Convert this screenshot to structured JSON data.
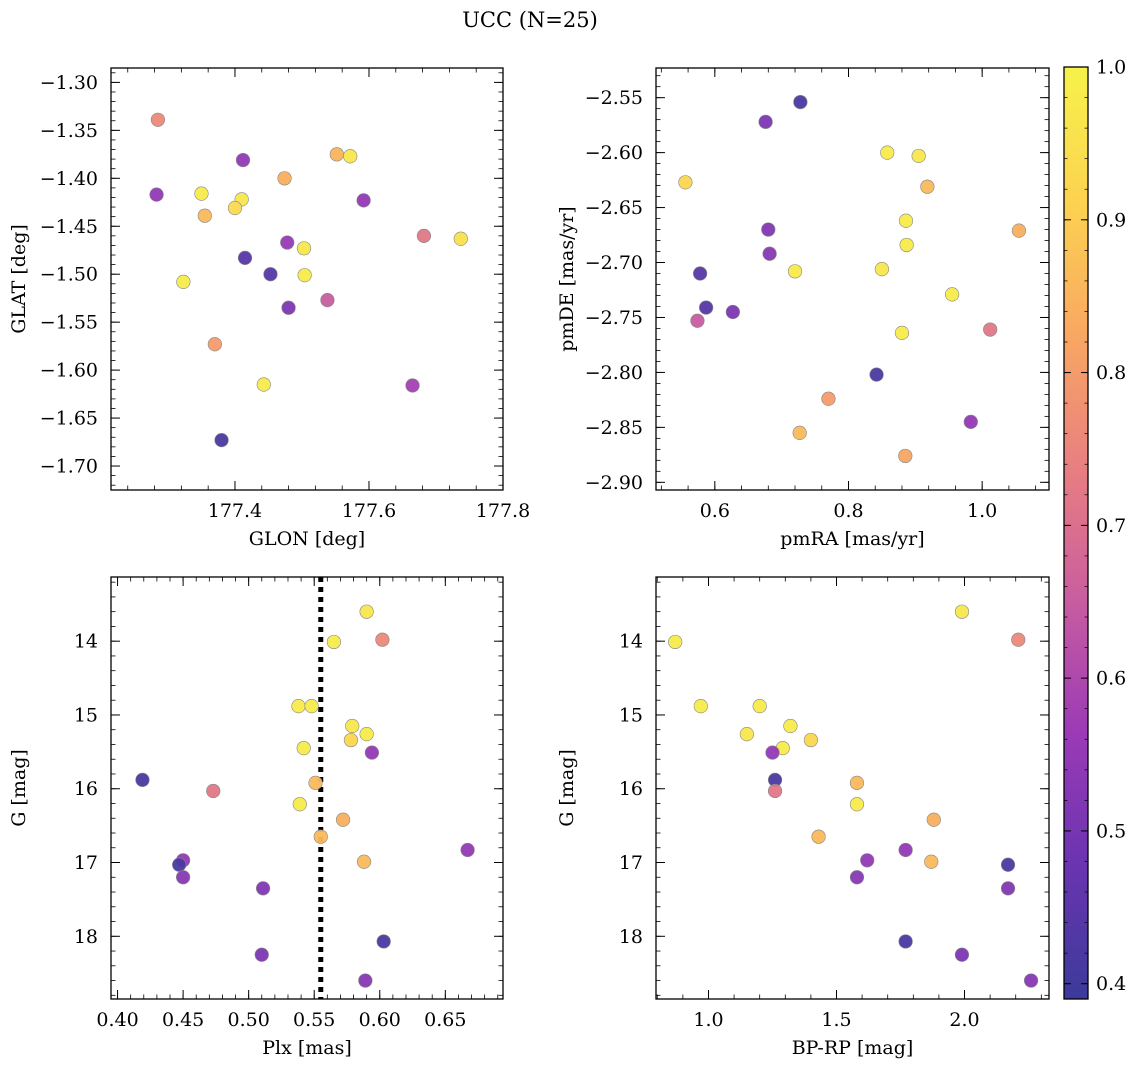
{
  "title": "UCC (N=25)",
  "colorbar": {
    "range": [
      0.39,
      1.0
    ],
    "ticks": [
      0.4,
      0.5,
      0.6,
      0.7,
      0.8,
      0.9,
      1.0
    ],
    "tick_labels": [
      "0.4",
      "0.5",
      "0.6",
      "0.7",
      "0.8",
      "0.9",
      "1.0"
    ],
    "colormap": "plasma (truncated)",
    "stops": [
      "#3b3b9a",
      "#6a34b0",
      "#9b3ab7",
      "#c95da0",
      "#e87f80",
      "#f9a862",
      "#fcd350",
      "#f6f24a"
    ]
  },
  "marker": {
    "edge_color": "#888888",
    "alpha": 0.95
  },
  "chart_data": [
    {
      "type": "scatter",
      "xlabel": "GLON [deg]",
      "ylabel": "GLAT [deg]",
      "xlim": [
        177.215,
        177.8
      ],
      "ylim": [
        -1.725,
        -1.285
      ],
      "xticks": [
        177.4,
        177.6,
        177.8
      ],
      "xtick_labels": [
        "177.4",
        "177.6",
        "177.8"
      ],
      "yticks": [
        -1.3,
        -1.35,
        -1.4,
        -1.45,
        -1.5,
        -1.55,
        -1.6,
        -1.65,
        -1.7
      ],
      "ytick_labels": [
        "−1.30",
        "−1.35",
        "−1.40",
        "−1.45",
        "−1.50",
        "−1.55",
        "−1.60",
        "−1.65",
        "−1.70"
      ],
      "points": [
        {
          "x": 177.285,
          "y": -1.339,
          "c": 0.76
        },
        {
          "x": 177.283,
          "y": -1.417,
          "c": 0.55
        },
        {
          "x": 177.35,
          "y": -1.416,
          "c": 0.98
        },
        {
          "x": 177.355,
          "y": -1.439,
          "c": 0.86
        },
        {
          "x": 177.412,
          "y": -1.381,
          "c": 0.55
        },
        {
          "x": 177.41,
          "y": -1.422,
          "c": 0.97
        },
        {
          "x": 177.4,
          "y": -1.431,
          "c": 0.93
        },
        {
          "x": 177.474,
          "y": -1.4,
          "c": 0.84
        },
        {
          "x": 177.552,
          "y": -1.375,
          "c": 0.85
        },
        {
          "x": 177.572,
          "y": -1.377,
          "c": 0.97
        },
        {
          "x": 177.592,
          "y": -1.423,
          "c": 0.55
        },
        {
          "x": 177.415,
          "y": -1.483,
          "c": 0.44
        },
        {
          "x": 177.453,
          "y": -1.5,
          "c": 0.44
        },
        {
          "x": 177.478,
          "y": -1.467,
          "c": 0.56
        },
        {
          "x": 177.503,
          "y": -1.473,
          "c": 0.97
        },
        {
          "x": 177.504,
          "y": -1.501,
          "c": 0.98
        },
        {
          "x": 177.323,
          "y": -1.508,
          "c": 0.98
        },
        {
          "x": 177.48,
          "y": -1.535,
          "c": 0.51
        },
        {
          "x": 177.538,
          "y": -1.527,
          "c": 0.65
        },
        {
          "x": 177.682,
          "y": -1.46,
          "c": 0.72
        },
        {
          "x": 177.737,
          "y": -1.463,
          "c": 0.95
        },
        {
          "x": 177.37,
          "y": -1.573,
          "c": 0.8
        },
        {
          "x": 177.443,
          "y": -1.615,
          "c": 0.98
        },
        {
          "x": 177.665,
          "y": -1.616,
          "c": 0.58
        },
        {
          "x": 177.38,
          "y": -1.673,
          "c": 0.42
        }
      ]
    },
    {
      "type": "scatter",
      "xlabel": "pmRA [mas/yr]",
      "ylabel": "pmDE [mas/yr]",
      "xlim": [
        0.512,
        1.1
      ],
      "ylim": [
        -2.907,
        -2.523
      ],
      "xticks": [
        0.6,
        0.8,
        1.0
      ],
      "xtick_labels": [
        "0.6",
        "0.8",
        "1.0"
      ],
      "yticks": [
        -2.55,
        -2.6,
        -2.65,
        -2.7,
        -2.75,
        -2.8,
        -2.85,
        -2.9
      ],
      "ytick_labels": [
        "−2.55",
        "−2.60",
        "−2.65",
        "−2.70",
        "−2.75",
        "−2.80",
        "−2.85",
        "−2.90"
      ],
      "points": [
        {
          "x": 0.728,
          "y": -2.554,
          "c": 0.42
        },
        {
          "x": 0.676,
          "y": -2.572,
          "c": 0.51
        },
        {
          "x": 0.858,
          "y": -2.6,
          "c": 0.98
        },
        {
          "x": 0.905,
          "y": -2.603,
          "c": 0.97
        },
        {
          "x": 0.556,
          "y": -2.627,
          "c": 0.92
        },
        {
          "x": 0.918,
          "y": -2.631,
          "c": 0.86
        },
        {
          "x": 0.886,
          "y": -2.662,
          "c": 0.98
        },
        {
          "x": 0.68,
          "y": -2.67,
          "c": 0.52
        },
        {
          "x": 1.055,
          "y": -2.671,
          "c": 0.84
        },
        {
          "x": 0.887,
          "y": -2.684,
          "c": 0.98
        },
        {
          "x": 0.682,
          "y": -2.692,
          "c": 0.53
        },
        {
          "x": 0.578,
          "y": -2.71,
          "c": 0.44
        },
        {
          "x": 0.72,
          "y": -2.708,
          "c": 0.98
        },
        {
          "x": 0.85,
          "y": -2.706,
          "c": 0.97
        },
        {
          "x": 0.587,
          "y": -2.741,
          "c": 0.44
        },
        {
          "x": 0.627,
          "y": -2.745,
          "c": 0.51
        },
        {
          "x": 0.574,
          "y": -2.753,
          "c": 0.65
        },
        {
          "x": 0.955,
          "y": -2.729,
          "c": 0.98
        },
        {
          "x": 0.88,
          "y": -2.764,
          "c": 0.98
        },
        {
          "x": 1.012,
          "y": -2.761,
          "c": 0.72
        },
        {
          "x": 0.842,
          "y": -2.802,
          "c": 0.42
        },
        {
          "x": 0.77,
          "y": -2.824,
          "c": 0.8
        },
        {
          "x": 0.727,
          "y": -2.855,
          "c": 0.86
        },
        {
          "x": 0.983,
          "y": -2.845,
          "c": 0.55
        },
        {
          "x": 0.885,
          "y": -2.876,
          "c": 0.82
        }
      ]
    },
    {
      "type": "scatter",
      "xlabel": "Plx [mas]",
      "ylabel": "G [mag]",
      "invert_y": true,
      "xlim": [
        0.395,
        0.694
      ],
      "ylim": [
        18.85,
        13.13
      ],
      "xticks": [
        0.4,
        0.45,
        0.5,
        0.55,
        0.6,
        0.65
      ],
      "xtick_labels": [
        "0.40",
        "0.45",
        "0.50",
        "0.55",
        "0.60",
        "0.65"
      ],
      "yticks": [
        14,
        15,
        16,
        17,
        18
      ],
      "ytick_labels": [
        "14",
        "15",
        "16",
        "17",
        "18"
      ],
      "vline": {
        "x": 0.555,
        "style": "dotted",
        "color": "#000000"
      },
      "points": [
        {
          "x": 0.59,
          "y": 13.6,
          "c": 0.97
        },
        {
          "x": 0.565,
          "y": 14.01,
          "c": 0.98
        },
        {
          "x": 0.602,
          "y": 13.98,
          "c": 0.76
        },
        {
          "x": 0.538,
          "y": 14.88,
          "c": 0.98
        },
        {
          "x": 0.548,
          "y": 14.88,
          "c": 0.98
        },
        {
          "x": 0.579,
          "y": 15.15,
          "c": 0.97
        },
        {
          "x": 0.59,
          "y": 15.26,
          "c": 0.98
        },
        {
          "x": 0.578,
          "y": 15.34,
          "c": 0.92
        },
        {
          "x": 0.542,
          "y": 15.45,
          "c": 0.98
        },
        {
          "x": 0.594,
          "y": 15.51,
          "c": 0.55
        },
        {
          "x": 0.419,
          "y": 15.88,
          "c": 0.42
        },
        {
          "x": 0.473,
          "y": 16.03,
          "c": 0.72
        },
        {
          "x": 0.551,
          "y": 15.92,
          "c": 0.86
        },
        {
          "x": 0.539,
          "y": 16.21,
          "c": 0.98
        },
        {
          "x": 0.572,
          "y": 16.42,
          "c": 0.84
        },
        {
          "x": 0.555,
          "y": 16.65,
          "c": 0.86
        },
        {
          "x": 0.45,
          "y": 16.97,
          "c": 0.55
        },
        {
          "x": 0.447,
          "y": 17.03,
          "c": 0.42
        },
        {
          "x": 0.45,
          "y": 17.2,
          "c": 0.53
        },
        {
          "x": 0.588,
          "y": 16.99,
          "c": 0.86
        },
        {
          "x": 0.667,
          "y": 16.83,
          "c": 0.55
        },
        {
          "x": 0.511,
          "y": 17.35,
          "c": 0.52
        },
        {
          "x": 0.603,
          "y": 18.07,
          "c": 0.42
        },
        {
          "x": 0.51,
          "y": 18.25,
          "c": 0.51
        },
        {
          "x": 0.589,
          "y": 18.6,
          "c": 0.53
        }
      ]
    },
    {
      "type": "scatter",
      "xlabel": "BP-RP [mag]",
      "ylabel": "G [mag]",
      "invert_y": true,
      "xlim": [
        0.795,
        2.33
      ],
      "ylim": [
        18.85,
        13.13
      ],
      "xticks": [
        1.0,
        1.5,
        2.0
      ],
      "xtick_labels": [
        "1.0",
        "1.5",
        "2.0"
      ],
      "yticks": [
        14,
        15,
        16,
        17,
        18
      ],
      "ytick_labels": [
        "14",
        "15",
        "16",
        "17",
        "18"
      ],
      "points": [
        {
          "x": 1.99,
          "y": 13.6,
          "c": 0.97
        },
        {
          "x": 0.87,
          "y": 14.01,
          "c": 0.98
        },
        {
          "x": 2.21,
          "y": 13.98,
          "c": 0.76
        },
        {
          "x": 0.97,
          "y": 14.88,
          "c": 0.98
        },
        {
          "x": 1.2,
          "y": 14.88,
          "c": 0.98
        },
        {
          "x": 1.15,
          "y": 15.26,
          "c": 0.97
        },
        {
          "x": 1.32,
          "y": 15.15,
          "c": 0.98
        },
        {
          "x": 1.4,
          "y": 15.34,
          "c": 0.92
        },
        {
          "x": 1.29,
          "y": 15.45,
          "c": 0.98
        },
        {
          "x": 1.25,
          "y": 15.51,
          "c": 0.55
        },
        {
          "x": 1.26,
          "y": 15.88,
          "c": 0.42
        },
        {
          "x": 1.26,
          "y": 16.03,
          "c": 0.72
        },
        {
          "x": 1.58,
          "y": 15.92,
          "c": 0.86
        },
        {
          "x": 1.58,
          "y": 16.21,
          "c": 0.98
        },
        {
          "x": 1.88,
          "y": 16.42,
          "c": 0.84
        },
        {
          "x": 1.43,
          "y": 16.65,
          "c": 0.86
        },
        {
          "x": 1.62,
          "y": 16.97,
          "c": 0.55
        },
        {
          "x": 1.77,
          "y": 16.83,
          "c": 0.55
        },
        {
          "x": 1.87,
          "y": 16.99,
          "c": 0.86
        },
        {
          "x": 2.17,
          "y": 17.03,
          "c": 0.42
        },
        {
          "x": 1.58,
          "y": 17.2,
          "c": 0.53
        },
        {
          "x": 2.17,
          "y": 17.35,
          "c": 0.52
        },
        {
          "x": 1.77,
          "y": 18.07,
          "c": 0.42
        },
        {
          "x": 1.99,
          "y": 18.25,
          "c": 0.51
        },
        {
          "x": 2.26,
          "y": 18.6,
          "c": 0.53
        }
      ]
    }
  ]
}
